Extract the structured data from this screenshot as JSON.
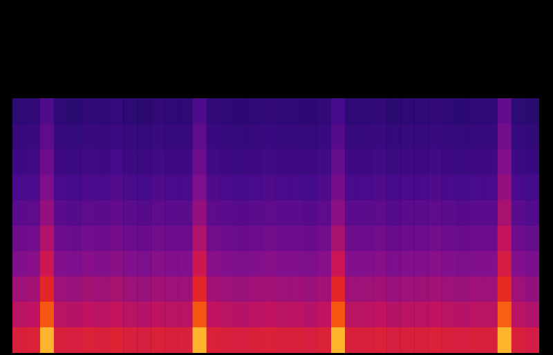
{
  "chart_data": {
    "type": "heatmap",
    "tick_labels": false,
    "grid": false,
    "ylim": [
      0,
      10
    ],
    "zlim": [
      0,
      100
    ],
    "cells": [
      [
        72,
        73,
        95,
        72,
        71,
        73,
        72,
        74,
        72,
        71,
        73,
        72,
        72,
        95,
        73,
        72,
        71,
        72,
        73,
        72,
        72,
        71,
        73,
        95,
        72,
        72,
        73,
        71,
        72,
        72,
        73,
        72,
        71,
        72,
        72,
        95,
        72,
        70
      ],
      [
        62,
        63,
        85,
        62,
        61,
        63,
        62,
        64,
        62,
        61,
        63,
        62,
        62,
        85,
        63,
        62,
        61,
        62,
        63,
        62,
        62,
        61,
        63,
        85,
        62,
        62,
        63,
        61,
        62,
        62,
        63,
        62,
        61,
        62,
        62,
        86,
        62,
        60
      ],
      [
        56,
        57,
        76,
        56,
        55,
        57,
        56,
        58,
        56,
        55,
        57,
        56,
        56,
        76,
        57,
        56,
        55,
        56,
        57,
        56,
        56,
        55,
        57,
        76,
        56,
        56,
        57,
        55,
        56,
        56,
        57,
        56,
        55,
        56,
        56,
        78,
        56,
        54
      ],
      [
        50,
        51,
        67,
        50,
        49,
        51,
        50,
        52,
        50,
        49,
        51,
        50,
        50,
        67,
        51,
        50,
        49,
        50,
        51,
        50,
        50,
        49,
        51,
        66,
        50,
        50,
        51,
        49,
        50,
        50,
        51,
        50,
        49,
        50,
        50,
        70,
        50,
        48
      ],
      [
        45,
        46,
        60,
        45,
        44,
        46,
        45,
        47,
        45,
        44,
        46,
        45,
        45,
        60,
        46,
        45,
        44,
        45,
        46,
        45,
        45,
        44,
        46,
        58,
        45,
        45,
        46,
        44,
        45,
        45,
        46,
        45,
        44,
        45,
        45,
        64,
        45,
        43
      ],
      [
        40,
        41,
        54,
        40,
        39,
        41,
        40,
        42,
        40,
        39,
        41,
        40,
        40,
        54,
        41,
        40,
        39,
        40,
        41,
        40,
        40,
        39,
        41,
        52,
        40,
        40,
        41,
        39,
        40,
        40,
        41,
        40,
        39,
        40,
        40,
        58,
        40,
        38
      ],
      [
        36,
        37,
        49,
        36,
        35,
        37,
        36,
        38,
        36,
        35,
        37,
        36,
        36,
        49,
        37,
        36,
        35,
        36,
        37,
        36,
        36,
        35,
        37,
        47,
        36,
        36,
        37,
        35,
        36,
        36,
        37,
        36,
        35,
        36,
        36,
        54,
        36,
        34
      ],
      [
        32,
        33,
        45,
        32,
        31,
        33,
        32,
        34,
        32,
        31,
        33,
        32,
        32,
        45,
        33,
        32,
        31,
        32,
        33,
        32,
        32,
        31,
        33,
        43,
        32,
        32,
        33,
        31,
        32,
        32,
        33,
        32,
        31,
        32,
        32,
        50,
        32,
        30
      ],
      [
        29,
        30,
        41,
        29,
        28,
        30,
        29,
        31,
        29,
        28,
        30,
        29,
        29,
        41,
        30,
        29,
        28,
        29,
        30,
        29,
        29,
        28,
        30,
        39,
        29,
        29,
        30,
        28,
        29,
        29,
        30,
        29,
        28,
        29,
        29,
        46,
        29,
        27
      ],
      [
        26,
        27,
        37,
        26,
        25,
        27,
        26,
        28,
        26,
        25,
        27,
        26,
        26,
        37,
        27,
        26,
        25,
        26,
        27,
        26,
        26,
        25,
        27,
        35,
        26,
        26,
        27,
        25,
        26,
        26,
        27,
        26,
        25,
        26,
        26,
        42,
        26,
        24
      ]
    ]
  }
}
